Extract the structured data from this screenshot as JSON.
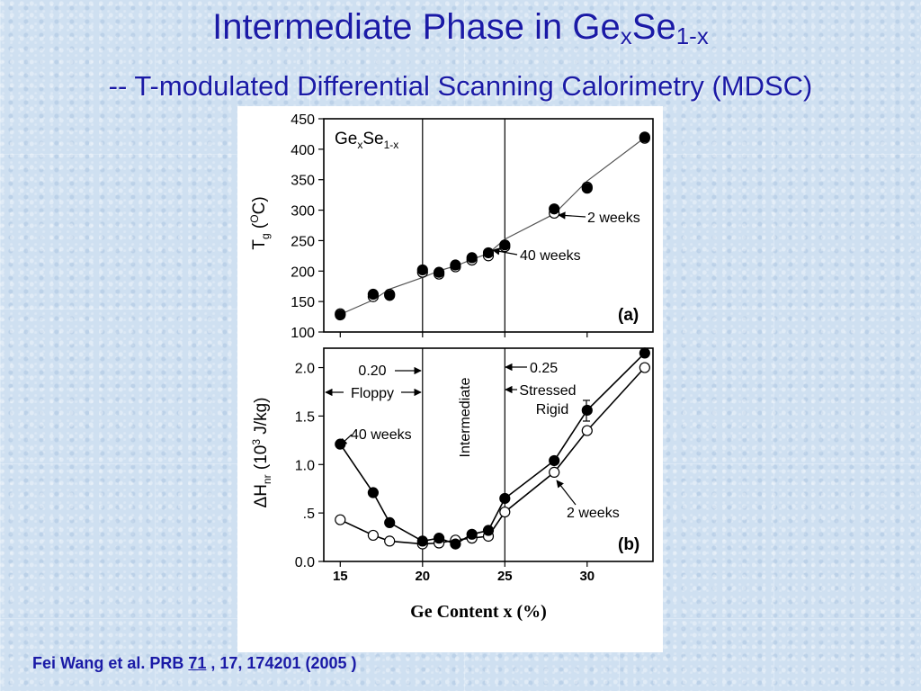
{
  "slide": {
    "title_main": "Intermediate Phase in Ge",
    "title_sub1": "x",
    "title_mid": "Se",
    "title_sub2": "1-x",
    "subtitle": "-- T-modulated Differential Scanning Calorimetry (MDSC)"
  },
  "citation": {
    "prefix": "Fei Wang et al. PRB ",
    "volume": "71",
    "rest": " , 17, 174201 (2005 )"
  },
  "colors": {
    "text_blue": "#1a1aa6",
    "background": "#cfe0f1"
  },
  "chart_data": [
    {
      "panel": "a",
      "type": "scatter",
      "panel_label": "(a)",
      "inset_label": {
        "main": "Ge",
        "sub1": "x",
        "mid": "Se",
        "sub2": "1-x"
      },
      "ylabel": {
        "main": "T",
        "sub": "g",
        "rest": "(",
        "sup": "O",
        "unit": "C)"
      },
      "ylim": [
        100,
        450
      ],
      "yticks": [
        100,
        150,
        200,
        250,
        300,
        350,
        400,
        450
      ],
      "xlim": [
        14,
        34
      ],
      "xticks": [
        15,
        20,
        25,
        30
      ],
      "vlines": [
        20,
        25
      ],
      "series": [
        {
          "name": "40 weeks",
          "marker": "filled",
          "x": [
            15,
            17,
            18,
            20,
            21,
            22,
            23,
            24,
            25,
            28,
            30,
            33.5
          ],
          "y": [
            128,
            162,
            160,
            202,
            198,
            210,
            222,
            230,
            243,
            302,
            336,
            420
          ]
        },
        {
          "name": "2 weeks",
          "marker": "open",
          "x": [
            15,
            17,
            18,
            20,
            21,
            22,
            23,
            24,
            25,
            28,
            30,
            33.5
          ],
          "y": [
            130,
            158,
            162,
            198,
            195,
            207,
            218,
            225,
            240,
            295,
            338,
            418
          ]
        }
      ],
      "annotations": [
        "2 weeks",
        "40 weeks"
      ]
    },
    {
      "panel": "b",
      "type": "line",
      "panel_label": "(b)",
      "ylabel": {
        "pre": "ΔH",
        "sub": "nr",
        "rest": " (10",
        "sup": "3",
        "unit": " J/kg)"
      },
      "ylim": [
        0,
        2.2
      ],
      "yticks": [
        0.0,
        0.5,
        1.0,
        1.5,
        2.0
      ],
      "ytick_labels": [
        "0.0",
        ".5",
        "1.0",
        "1.5",
        "2.0"
      ],
      "xlim": [
        14,
        34
      ],
      "xticks": [
        15,
        20,
        25,
        30
      ],
      "xtick_labels": [
        "15",
        "20",
        "25",
        "30"
      ],
      "xlabel": "Ge Content x (%)",
      "vlines": [
        20,
        25
      ],
      "series": [
        {
          "name": "40 weeks",
          "marker": "filled",
          "x": [
            15,
            17,
            18,
            20,
            21,
            22,
            23,
            24,
            25,
            28,
            30,
            33.5
          ],
          "y": [
            1.21,
            0.71,
            0.4,
            0.21,
            0.24,
            0.18,
            0.28,
            0.32,
            0.65,
            1.04,
            1.56,
            2.15
          ]
        },
        {
          "name": "2 weeks",
          "marker": "open",
          "x": [
            15,
            17,
            18,
            20,
            21,
            22,
            23,
            24,
            25,
            28,
            30,
            33.5
          ],
          "y": [
            0.43,
            0.27,
            0.21,
            0.18,
            0.19,
            0.22,
            0.24,
            0.26,
            0.51,
            0.92,
            1.35,
            2.0
          ]
        }
      ],
      "annotations": {
        "left_edge": "0.20",
        "left_region": "Floppy",
        "middle_region": "Intermediate",
        "right_edge": "0.25",
        "right_region_1": "Stressed",
        "right_region_2": "Rigid",
        "filled_series": "40 weeks",
        "open_series": "2 weeks"
      }
    }
  ]
}
